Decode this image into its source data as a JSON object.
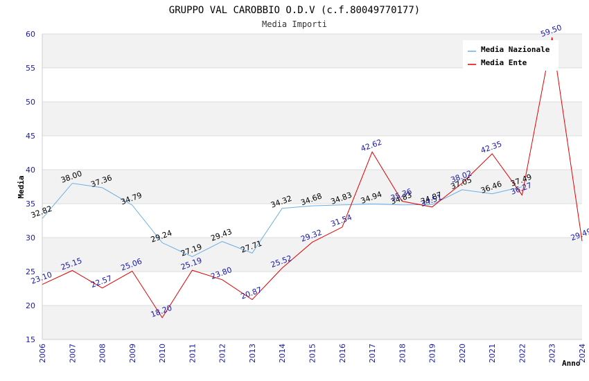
{
  "chart_data": {
    "type": "line",
    "title": "GRUPPO VAL CAROBBIO O.D.V (c.f.80049770177)",
    "subtitle": "Media Importi",
    "xlabel": "Anno",
    "ylabel": "Media",
    "ylim": [
      15,
      60
    ],
    "yticks": [
      "15",
      "20",
      "25",
      "30",
      "35",
      "40",
      "45",
      "50",
      "55",
      "60"
    ],
    "categories": [
      "2006",
      "2007",
      "2008",
      "2009",
      "2010",
      "2011",
      "2012",
      "2013",
      "2014",
      "2015",
      "2016",
      "2017",
      "2018",
      "2019",
      "2020",
      "2021",
      "2022",
      "2023",
      "2024"
    ],
    "legend_position": "top-right",
    "series": [
      {
        "name": "Media Nazionale",
        "color": "#6aaee8",
        "values": [
          32.82,
          38.0,
          37.36,
          34.79,
          29.24,
          27.19,
          29.43,
          27.71,
          34.32,
          34.68,
          34.83,
          34.94,
          34.83,
          34.87,
          37.05,
          36.46,
          37.49,
          null,
          null
        ],
        "labels": [
          "32.82",
          "38.00",
          "37.36",
          "34.79",
          "29.24",
          "27.19",
          "29.43",
          "27.71",
          "34.32",
          "34.68",
          "34.83",
          "34.94",
          "34.83",
          "34.87",
          "37.05",
          "36.46",
          "37.49",
          "",
          ""
        ]
      },
      {
        "name": "Media Ente",
        "color": "#e00000",
        "values": [
          23.1,
          25.15,
          22.57,
          25.06,
          18.2,
          25.19,
          23.8,
          20.87,
          25.52,
          29.32,
          31.54,
          42.62,
          35.36,
          34.51,
          38.02,
          42.35,
          36.27,
          59.5,
          29.49
        ],
        "labels": [
          "23.10",
          "25.15",
          "22.57",
          "25.06",
          "18.20",
          "25.19",
          "23.80",
          "20.87",
          "25.52",
          "29.32",
          "31.54",
          "42.62",
          "35.36",
          "34.51",
          "38.02",
          "42.35",
          "36.27",
          "59.50",
          "29.49"
        ]
      }
    ]
  }
}
